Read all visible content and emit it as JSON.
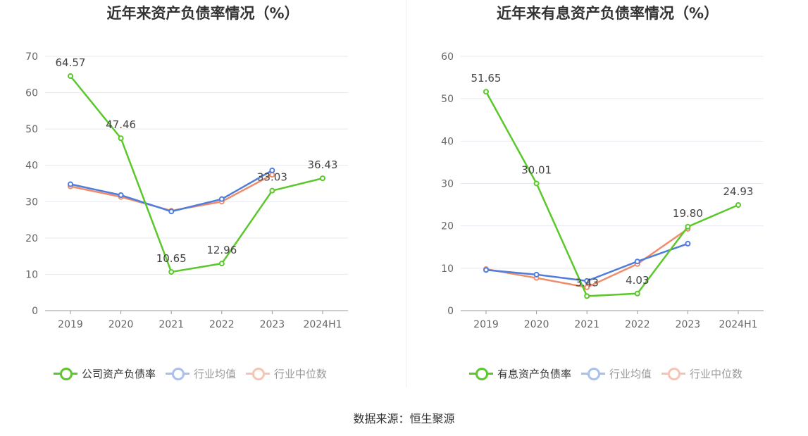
{
  "footer": {
    "source": "数据来源：恒生聚源"
  },
  "chart_data": [
    {
      "type": "line",
      "title": "近年来资产负债率情况（%）",
      "x": [
        "2019",
        "2020",
        "2021",
        "2022",
        "2023",
        "2024H1"
      ],
      "ylim": [
        0,
        70
      ],
      "yticks": [
        0,
        10,
        20,
        30,
        40,
        50,
        60,
        70
      ],
      "grid": true,
      "legend_position": "bottom",
      "series": [
        {
          "name": "公司资产负债率",
          "color": "#5ac82a",
          "values": [
            64.57,
            47.46,
            10.65,
            12.96,
            33.03,
            36.43
          ],
          "labels": [
            "64.57",
            "47.46",
            "10.65",
            "12.96",
            "33.03",
            "36.43"
          ]
        },
        {
          "name": "行业均值",
          "color": "#4f7ddb",
          "values": [
            34.8,
            31.8,
            27.3,
            30.7,
            38.6,
            null
          ]
        },
        {
          "name": "行业中位数",
          "color": "#f08c6a",
          "values": [
            34.2,
            31.3,
            27.5,
            30.0,
            37.4,
            null
          ]
        }
      ]
    },
    {
      "type": "line",
      "title": "近年来有息资产负债率情况（%）",
      "x": [
        "2019",
        "2020",
        "2021",
        "2022",
        "2023",
        "2024H1"
      ],
      "ylim": [
        0,
        60
      ],
      "yticks": [
        0,
        10,
        20,
        30,
        40,
        50,
        60
      ],
      "grid": true,
      "legend_position": "bottom",
      "series": [
        {
          "name": "有息资产负债率",
          "color": "#5ac82a",
          "values": [
            51.65,
            30.01,
            3.43,
            4.03,
            19.8,
            24.93
          ],
          "labels": [
            "51.65",
            "30.01",
            "3.43",
            "4.03",
            "19.80",
            "24.93"
          ]
        },
        {
          "name": "行业均值",
          "color": "#4f7ddb",
          "values": [
            9.6,
            8.5,
            7.0,
            11.6,
            15.8,
            null
          ]
        },
        {
          "name": "行业中位数",
          "color": "#f08c6a",
          "values": [
            9.8,
            7.7,
            5.5,
            11.0,
            19.3,
            null
          ]
        }
      ]
    }
  ]
}
